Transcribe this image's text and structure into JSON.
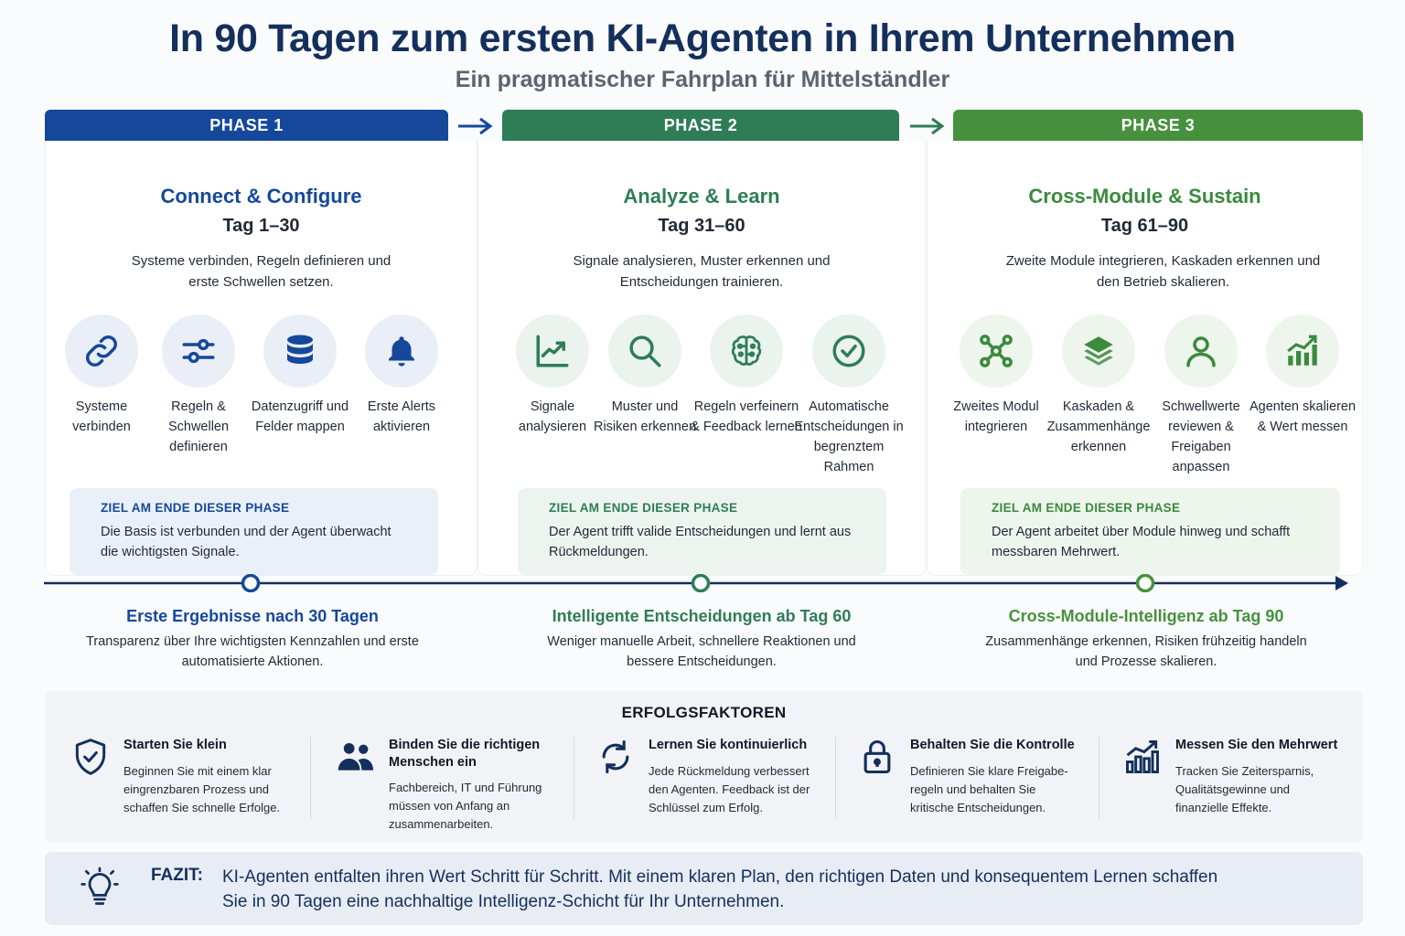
{
  "title": "In 90 Tagen zum ersten KI-Agenten in Ihrem Unternehmen",
  "subtitle": "Ein pragmatischer Fahrplan für Mittelständler",
  "colors": {
    "navy": "#142f5c",
    "phase1": "#15489b",
    "phase2": "#2e7d56",
    "phase3": "#47913e"
  },
  "phases": [
    {
      "header": "PHASE 1",
      "name": "Connect & Configure",
      "days": "Tag 1–30",
      "desc": "Systeme verbinden, Regeln definieren und erste Schwellen setzen.",
      "steps": [
        {
          "icon": "link-icon",
          "label": "Systeme verbinden"
        },
        {
          "icon": "sliders-icon",
          "label": "Regeln & Schwellen definieren"
        },
        {
          "icon": "database-icon",
          "label": "Datenzugriff und Felder mappen"
        },
        {
          "icon": "bell-icon",
          "label": "Erste Alerts aktivieren"
        }
      ],
      "goal_title": "ZIEL AM ENDE DIESER PHASE",
      "goal_text": "Die Basis ist verbunden und der Agent überwacht die wichtigsten Signale."
    },
    {
      "header": "PHASE 2",
      "name": "Analyze & Learn",
      "days": "Tag 31–60",
      "desc": "Signale analysieren, Muster erkennen und Entscheidungen trainieren.",
      "steps": [
        {
          "icon": "line-chart-icon",
          "label": "Signale analysieren"
        },
        {
          "icon": "magnifier-icon",
          "label": "Muster und Risiken erkennen"
        },
        {
          "icon": "brain-icon",
          "label": "Regeln verfeinern & Feedback lernen"
        },
        {
          "icon": "check-circle-icon",
          "label": "Automatische Entscheidungen in begrenztem Rahmen"
        }
      ],
      "goal_title": "ZIEL AM ENDE DIESER PHASE",
      "goal_text": "Der Agent trifft valide Entscheidungen und lernt aus Rückmeldungen."
    },
    {
      "header": "PHASE 3",
      "name": "Cross-Module & Sustain",
      "days": "Tag 61–90",
      "desc": "Zweite Module integrieren, Kaskaden erkennen und den Betrieb skalieren.",
      "steps": [
        {
          "icon": "network-icon",
          "label": "Zweites Modul integrieren"
        },
        {
          "icon": "layers-icon",
          "label": "Kaskaden & Zusammenhänge erkennen"
        },
        {
          "icon": "user-icon",
          "label": "Schwellwerte reviewen & Freigaben anpassen"
        },
        {
          "icon": "growth-chart-icon",
          "label": "Agenten skalieren & Wert messen"
        }
      ],
      "goal_title": "ZIEL AM ENDE DIESER PHASE",
      "goal_text": "Der Agent arbeitet über Module hinweg und schafft messbaren Mehrwert."
    }
  ],
  "milestones": [
    {
      "title": "Erste Ergebnisse nach 30 Tagen",
      "text": "Transparenz über Ihre wichtigsten Kennzahlen und erste automatisierte Aktionen."
    },
    {
      "title": "Intelligente Entscheidungen ab Tag 60",
      "text": "Weniger manuelle Arbeit, schnellere Reaktionen und bessere Entscheidungen."
    },
    {
      "title": "Cross-Module-Intelligenz ab Tag 90",
      "text": "Zusammenhänge erkennen, Risiken frühzeitig handeln und Prozesse skalieren."
    }
  ],
  "success": {
    "title": "ERFOLGSFAKTOREN",
    "factors": [
      {
        "icon": "shield-check-icon",
        "title": "Starten Sie klein",
        "text": "Beginnen Sie mit einem klar eingrenzbaren Prozess und schaffen Sie schnelle Erfolge."
      },
      {
        "icon": "people-icon",
        "title": "Binden Sie die richtigen Menschen ein",
        "text": "Fachbereich, IT und Führung müssen von Anfang an zusammenarbeiten."
      },
      {
        "icon": "refresh-icon",
        "title": "Lernen Sie kontinuierlich",
        "text": "Jede Rückmeldung verbessert den Agenten. Feedback ist der Schlüssel zum Erfolg."
      },
      {
        "icon": "lock-icon",
        "title": "Behalten Sie die Kontrolle",
        "text": "Definieren Sie klare Freigabe-regeln und behalten Sie kritische Entscheidungen."
      },
      {
        "icon": "bar-chart-icon",
        "title": "Messen Sie den Mehrwert",
        "text": "Tracken Sie Zeitersparnis, Qualitätsgewinne und finanzielle Effekte."
      }
    ]
  },
  "fazit": {
    "label": "FAZIT:",
    "text": "KI-Agenten entfalten ihren Wert Schritt für Schritt. Mit einem klaren Plan, den richtigen Daten und konsequentem Lernen schaffen Sie in 90 Tagen eine nachhaltige Intelligenz-Schicht für Ihr Unternehmen."
  }
}
